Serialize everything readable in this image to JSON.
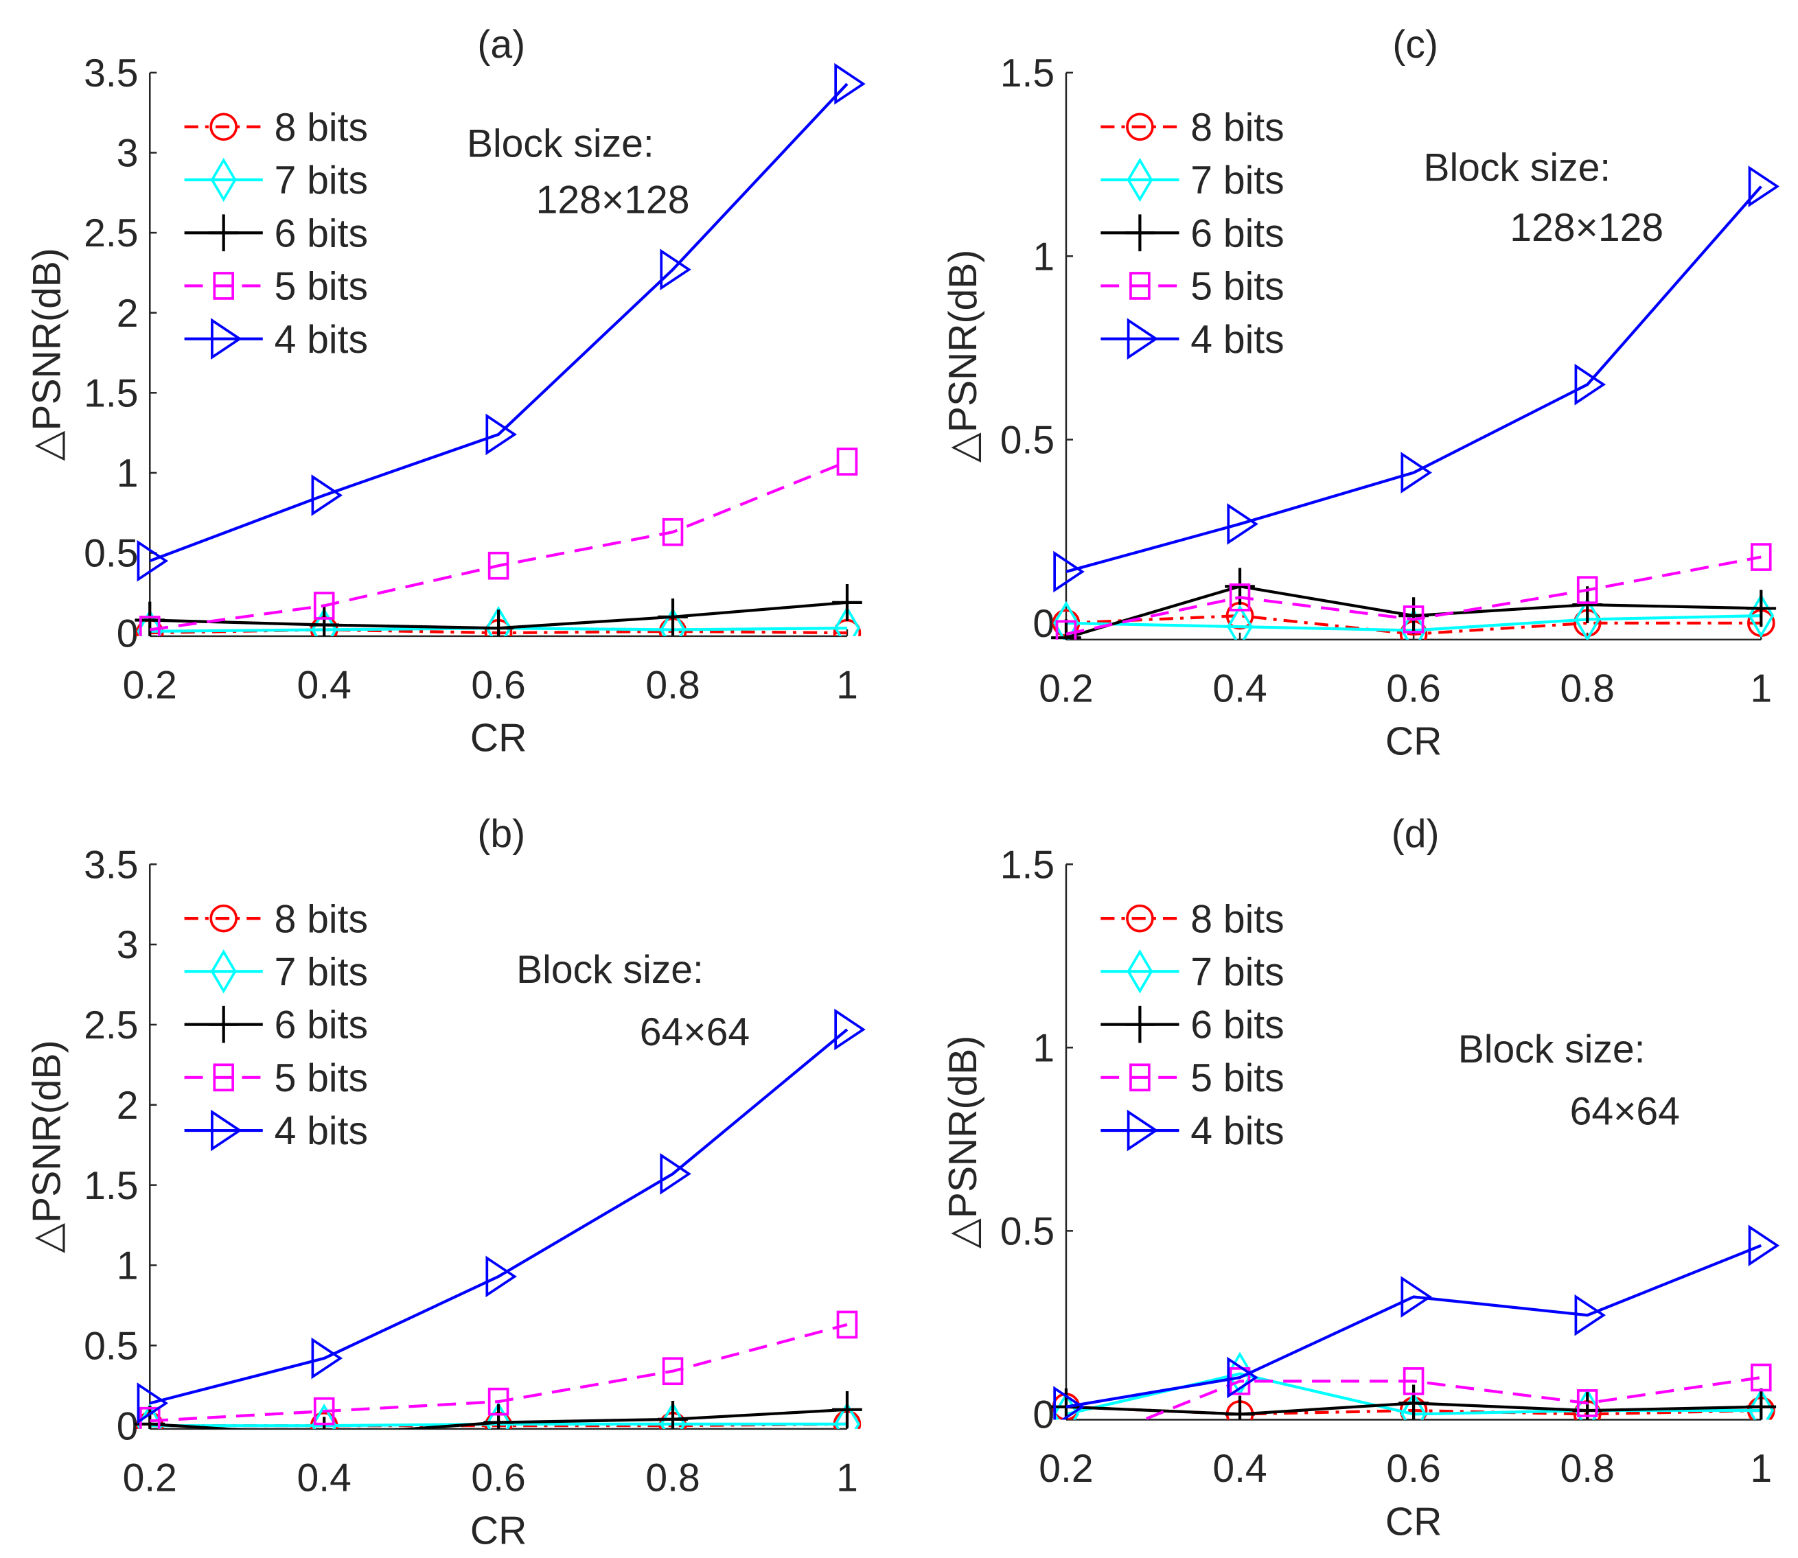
{
  "chart_data": [
    {
      "type": "line",
      "title": "(a)",
      "xlabel": "CR",
      "ylabel": "△PSNR(dB)",
      "annotation": [
        "Block size:",
        "128×128"
      ],
      "x": [
        0.2,
        0.4,
        0.6,
        0.8,
        1
      ],
      "xticks": [
        "0.2",
        "0.4",
        "0.6",
        "0.8",
        "1"
      ],
      "yticks": [
        "0",
        "0.5",
        "1",
        "1.5",
        "2",
        "2.5",
        "3",
        "3.5"
      ],
      "ylim": [
        -0.02,
        3.5
      ],
      "legend": "top-left",
      "series": [
        {
          "name": "8 bits",
          "values": [
            0.0,
            0.02,
            0.0,
            0.01,
            0.0
          ]
        },
        {
          "name": "7 bits",
          "values": [
            0.01,
            0.02,
            0.03,
            0.02,
            0.03
          ]
        },
        {
          "name": "6 bits",
          "values": [
            0.08,
            0.05,
            0.03,
            0.1,
            0.19
          ]
        },
        {
          "name": "5 bits",
          "values": [
            0.02,
            0.17,
            0.42,
            0.63,
            1.07
          ]
        },
        {
          "name": "4 bits",
          "values": [
            0.45,
            0.86,
            1.24,
            2.27,
            3.43
          ]
        }
      ]
    },
    {
      "type": "line",
      "title": "(b)",
      "xlabel": "CR",
      "ylabel": "△PSNR(dB)",
      "annotation": [
        "Block size:",
        "64×64"
      ],
      "x": [
        0.2,
        0.4,
        0.6,
        0.8,
        1
      ],
      "xticks": [
        "0.2",
        "0.4",
        "0.6",
        "0.8",
        "1"
      ],
      "yticks": [
        "0",
        "0.5",
        "1",
        "1.5",
        "2",
        "2.5",
        "3",
        "3.5"
      ],
      "ylim": [
        -0.02,
        3.5
      ],
      "legend": "top-left",
      "series": [
        {
          "name": "8 bits",
          "values": [
            0.0,
            0.0,
            0.0,
            0.0,
            0.01
          ]
        },
        {
          "name": "7 bits",
          "values": [
            0.0,
            0.0,
            0.01,
            0.01,
            0.01
          ]
        },
        {
          "name": "6 bits",
          "values": [
            0.01,
            -0.06,
            0.02,
            0.04,
            0.1
          ]
        },
        {
          "name": "5 bits",
          "values": [
            0.03,
            0.09,
            0.15,
            0.34,
            0.63
          ]
        },
        {
          "name": "4 bits",
          "values": [
            0.14,
            0.42,
            0.93,
            1.57,
            2.47
          ]
        }
      ]
    },
    {
      "type": "line",
      "title": "(c)",
      "xlabel": "CR",
      "ylabel": "△PSNR(dB)",
      "annotation": [
        "Block size:",
        "128×128"
      ],
      "x": [
        0.2,
        0.4,
        0.6,
        0.8,
        1
      ],
      "xticks": [
        "0.2",
        "0.4",
        "0.6",
        "0.8",
        "1"
      ],
      "yticks": [
        "0",
        "0.5",
        "1",
        "1.5"
      ],
      "ylim": [
        -0.045,
        1.5
      ],
      "legend": "top-left",
      "series": [
        {
          "name": "8 bits",
          "values": [
            0.0,
            0.02,
            -0.03,
            0.0,
            0.0
          ]
        },
        {
          "name": "7 bits",
          "values": [
            0.0,
            -0.01,
            -0.02,
            0.01,
            0.02
          ]
        },
        {
          "name": "6 bits",
          "values": [
            -0.04,
            0.1,
            0.02,
            0.05,
            0.04
          ]
        },
        {
          "name": "5 bits",
          "values": [
            -0.03,
            0.07,
            0.01,
            0.09,
            0.18
          ]
        },
        {
          "name": "4 bits",
          "values": [
            0.14,
            0.27,
            0.41,
            0.65,
            1.19
          ]
        }
      ]
    },
    {
      "type": "line",
      "title": "(d)",
      "xlabel": "CR",
      "ylabel": "△PSNR(dB)",
      "annotation": [
        "Block size:",
        "64×64"
      ],
      "x": [
        0.2,
        0.4,
        0.6,
        0.8,
        1
      ],
      "xticks": [
        "0.2",
        "0.4",
        "0.6",
        "0.8",
        "1"
      ],
      "yticks": [
        "0",
        "0.5",
        "1",
        "1.5"
      ],
      "ylim": [
        -0.015,
        1.5
      ],
      "legend": "top-left",
      "series": [
        {
          "name": "8 bits",
          "values": [
            0.02,
            0.0,
            0.01,
            0.0,
            0.01
          ]
        },
        {
          "name": "7 bits",
          "values": [
            0.0,
            0.11,
            0.0,
            0.01,
            0.01
          ]
        },
        {
          "name": "6 bits",
          "values": [
            0.02,
            0.0,
            0.03,
            0.01,
            0.02
          ]
        },
        {
          "name": "5 bits",
          "values": [
            -0.1,
            0.09,
            0.09,
            0.03,
            0.1
          ]
        },
        {
          "name": "4 bits",
          "values": [
            0.02,
            0.1,
            0.32,
            0.27,
            0.46
          ]
        }
      ]
    }
  ],
  "styles": {
    "8 bits": {
      "color": "#ff0000",
      "dash": "12,6,3,6",
      "marker": "circle"
    },
    "7 bits": {
      "color": "#00ffff",
      "dash": "",
      "marker": "diamond"
    },
    "6 bits": {
      "color": "#000000",
      "dash": "",
      "marker": "plus"
    },
    "5 bits": {
      "color": "#ff00ff",
      "dash": "16,9",
      "marker": "square"
    },
    "4 bits": {
      "color": "#0000ff",
      "dash": "",
      "marker": "triangle-right"
    }
  }
}
